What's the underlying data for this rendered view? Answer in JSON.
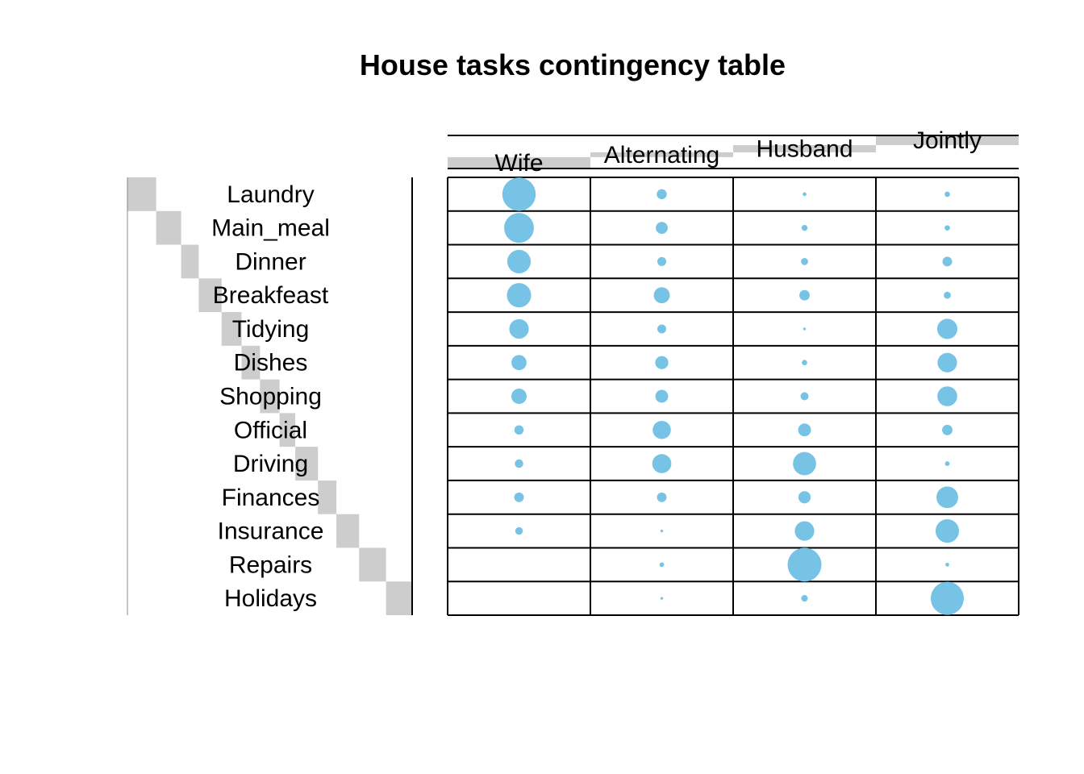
{
  "chart_data": {
    "type": "balloon",
    "title": "House tasks contingency table",
    "columns": [
      "Wife",
      "Alternating",
      "Husband",
      "Jointly"
    ],
    "rows": [
      "Laundry",
      "Main_meal",
      "Dinner",
      "Breakfeast",
      "Tidying",
      "Dishes",
      "Shopping",
      "Official",
      "Driving",
      "Finances",
      "Insurance",
      "Repairs",
      "Holidays"
    ],
    "values": [
      [
        156,
        14,
        2,
        4
      ],
      [
        124,
        20,
        5,
        4
      ],
      [
        77,
        11,
        7,
        13
      ],
      [
        82,
        36,
        15,
        7
      ],
      [
        53,
        11,
        1,
        57
      ],
      [
        32,
        24,
        4,
        53
      ],
      [
        33,
        23,
        9,
        55
      ],
      [
        12,
        46,
        23,
        15
      ],
      [
        10,
        51,
        75,
        3
      ],
      [
        13,
        13,
        21,
        66
      ],
      [
        8,
        1,
        53,
        77
      ],
      [
        0,
        3,
        160,
        2
      ],
      [
        0,
        1,
        6,
        153
      ]
    ],
    "row_order_bars": true,
    "column_order_bars": true,
    "colors": {
      "point": "#77C3E6",
      "bar": "#CDCDCD",
      "grid": "#000000"
    }
  }
}
